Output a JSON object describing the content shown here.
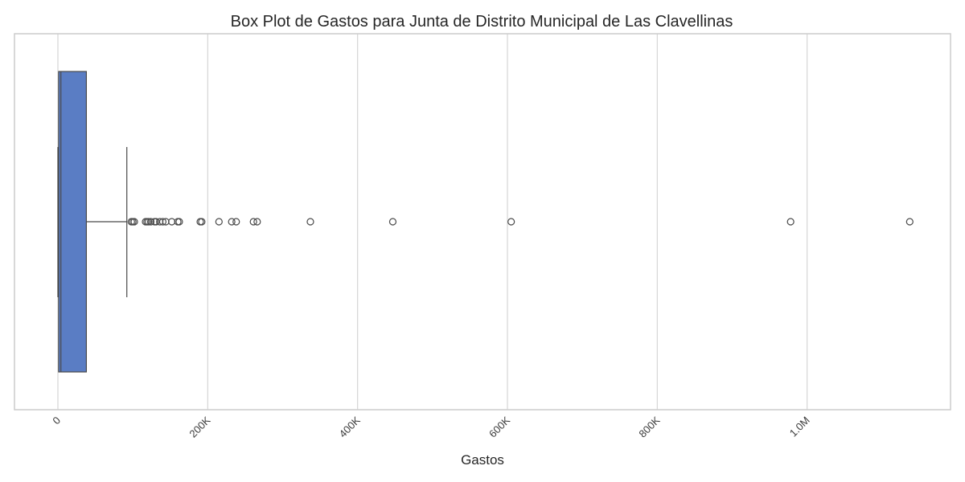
{
  "chart_data": {
    "type": "boxplot",
    "title": "Box Plot de Gastos para Junta de Distrito Municipal de Las Clavellinas",
    "xlabel": "Gastos",
    "ylabel": "",
    "xlim": [
      -60000,
      1190000
    ],
    "xticks": [
      {
        "value": 0,
        "label": "0"
      },
      {
        "value": 200000,
        "label": "200K"
      },
      {
        "value": 400000,
        "label": "400K"
      },
      {
        "value": 600000,
        "label": "600K"
      },
      {
        "value": 800000,
        "label": "800K"
      },
      {
        "value": 1000000,
        "label": "1.0M"
      }
    ],
    "grid": true,
    "box": {
      "whisker_low": 0,
      "q1": 1000,
      "median": 4000,
      "q3": 38000,
      "whisker_high": 92000
    },
    "outliers": [
      98000,
      100000,
      102000,
      117000,
      119000,
      121000,
      124000,
      129000,
      131000,
      136000,
      140000,
      144000,
      152000,
      160000,
      162000,
      190000,
      192000,
      215000,
      232000,
      238000,
      261000,
      266000,
      337000,
      447000,
      605000,
      978000,
      1137000
    ],
    "colors": {
      "box_fill": "#5a7dc4",
      "line": "#4a4a4a",
      "grid": "#d6d6d6",
      "frame": "#cccccc"
    }
  }
}
